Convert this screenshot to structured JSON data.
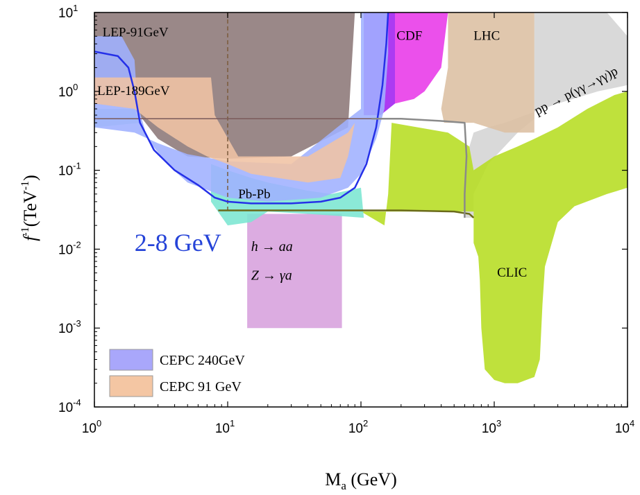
{
  "chart_data": {
    "type": "area",
    "xlabel": "M",
    "xlabel_sub": "a",
    "xlabel_unit": " (GeV)",
    "ylabel": "f",
    "ylabel_sup": "-1",
    "ylabel_unit": "(TeV",
    "ylabel_unit_sup": "-1",
    "ylabel_unit_close": ")",
    "x_scale": "log",
    "y_scale": "log",
    "xlim": [
      1,
      10000
    ],
    "ylim": [
      0.0001,
      10
    ],
    "x_ticks": [
      {
        "base": "10",
        "exp": "0",
        "value": 1
      },
      {
        "base": "10",
        "exp": "1",
        "value": 10
      },
      {
        "base": "10",
        "exp": "2",
        "value": 100
      },
      {
        "base": "10",
        "exp": "3",
        "value": 1000
      },
      {
        "base": "10",
        "exp": "4",
        "value": 10000
      }
    ],
    "y_ticks": [
      {
        "base": "10",
        "exp": "-4",
        "value": 0.0001
      },
      {
        "base": "10",
        "exp": "-3",
        "value": 0.001
      },
      {
        "base": "10",
        "exp": "-2",
        "value": 0.01
      },
      {
        "base": "10",
        "exp": "-1",
        "value": 0.1
      },
      {
        "base": "10",
        "exp": "0",
        "value": 1
      },
      {
        "base": "10",
        "exp": "1",
        "value": 10
      }
    ],
    "regions": [
      {
        "id": "lhc-pp",
        "color": "#d4d4d4",
        "points": [
          [
            2000,
            10
          ],
          [
            7000,
            10
          ],
          [
            10000,
            5
          ],
          [
            10000,
            1.2
          ],
          [
            6000,
            1.0
          ],
          [
            3000,
            0.7
          ],
          [
            2000,
            0.55
          ],
          [
            1200,
            0.4
          ],
          [
            900,
            0.35
          ],
          [
            700,
            0.3
          ],
          [
            620,
            0.15
          ],
          [
            590,
            0.05
          ],
          [
            590,
            0.025
          ],
          [
            700,
            0.025
          ],
          [
            700,
            0.05
          ],
          [
            900,
            0.12
          ],
          [
            1500,
            0.3
          ],
          [
            2000,
            0.45
          ]
        ]
      },
      {
        "id": "lhc",
        "color": "#dcbfa2",
        "points": [
          [
            450,
            10
          ],
          [
            2000,
            10
          ],
          [
            2000,
            0.3
          ],
          [
            1200,
            0.3
          ],
          [
            700,
            0.4
          ],
          [
            420,
            0.4
          ],
          [
            400,
            0.6
          ],
          [
            420,
            1.0
          ],
          [
            450,
            2.0
          ]
        ]
      },
      {
        "id": "clic",
        "color": "#b6dd21",
        "points": [
          [
            700,
            0.03
          ],
          [
            700,
            0.012
          ],
          [
            760,
            0.008
          ],
          [
            780,
            0.004
          ],
          [
            800,
            0.001
          ],
          [
            850,
            0.0003
          ],
          [
            1000,
            0.00022
          ],
          [
            1200,
            0.0002
          ],
          [
            1500,
            0.0002
          ],
          [
            2000,
            0.00024
          ],
          [
            2200,
            0.0004
          ],
          [
            2300,
            0.002
          ],
          [
            2400,
            0.006
          ],
          [
            3000,
            0.022
          ],
          [
            4000,
            0.035
          ],
          [
            7000,
            0.05
          ],
          [
            10000,
            0.06
          ],
          [
            10000,
            1.0
          ],
          [
            8000,
            0.9
          ],
          [
            5000,
            0.6
          ],
          [
            3000,
            0.35
          ],
          [
            2000,
            0.25
          ],
          [
            1500,
            0.2
          ],
          [
            1000,
            0.15
          ],
          [
            700,
            0.1
          ],
          [
            650,
            0.2
          ],
          [
            450,
            0.3
          ],
          [
            170,
            0.4
          ],
          [
            160,
            0.05
          ],
          [
            150,
            0.02
          ],
          [
            100,
            0.03
          ]
        ]
      },
      {
        "id": "cdf",
        "color": "#a020f0",
        "points": [
          [
            105,
            10
          ],
          [
            180,
            10
          ],
          [
            180,
            0.7
          ],
          [
            140,
            0.5
          ],
          [
            105,
            0.5
          ]
        ]
      },
      {
        "id": "cdf-magenta",
        "color": "#e838e8",
        "points": [
          [
            180,
            10
          ],
          [
            450,
            10
          ],
          [
            400,
            2.0
          ],
          [
            300,
            1.0
          ],
          [
            250,
            0.8
          ],
          [
            180,
            0.7
          ]
        ]
      },
      {
        "id": "lep-91",
        "color": "#8c7878",
        "points": [
          [
            1,
            10
          ],
          [
            90,
            10
          ],
          [
            80,
            0.35
          ],
          [
            30,
            0.15
          ],
          [
            10,
            0.14
          ],
          [
            5,
            0.15
          ],
          [
            3,
            0.25
          ],
          [
            2,
            0.6
          ],
          [
            1,
            0.7
          ]
        ]
      },
      {
        "id": "lep-189",
        "color": "#a5e3d3",
        "points": [
          [
            1,
            0.6
          ],
          [
            2,
            0.6
          ],
          [
            2.2,
            0.4
          ],
          [
            1,
            0.35
          ]
        ]
      },
      {
        "id": "hz",
        "color": "#d7a1dd",
        "points": [
          [
            14,
            0.028
          ],
          [
            72,
            0.028
          ],
          [
            72,
            0.001
          ],
          [
            14,
            0.001
          ]
        ]
      },
      {
        "id": "pbpb",
        "color": "#7be6d2",
        "points": [
          [
            7.5,
            0.12
          ],
          [
            10,
            0.1
          ],
          [
            15,
            0.08
          ],
          [
            20,
            0.07
          ],
          [
            40,
            0.055
          ],
          [
            60,
            0.05
          ],
          [
            100,
            0.06
          ],
          [
            105,
            0.025
          ],
          [
            40,
            0.028
          ],
          [
            20,
            0.03
          ],
          [
            15,
            0.022
          ],
          [
            10,
            0.02
          ],
          [
            7.5,
            0.04
          ]
        ]
      },
      {
        "id": "cepc-240",
        "color": "#9fb0ff",
        "points": [
          [
            1,
            5
          ],
          [
            1.6,
            5
          ],
          [
            2,
            2.5
          ],
          [
            2.1,
            0.7
          ],
          [
            2.5,
            0.25
          ],
          [
            3.5,
            0.12
          ],
          [
            5,
            0.07
          ],
          [
            10,
            0.045
          ],
          [
            20,
            0.04
          ],
          [
            50,
            0.045
          ],
          [
            80,
            0.06
          ],
          [
            100,
            0.09
          ],
          [
            130,
            0.25
          ],
          [
            150,
            0.6
          ],
          [
            160,
            3
          ],
          [
            160,
            10
          ],
          [
            100,
            10
          ],
          [
            100,
            0.6
          ],
          [
            80,
            0.45
          ],
          [
            30,
            0.12
          ],
          [
            10,
            0.13
          ],
          [
            5,
            0.16
          ],
          [
            3,
            0.22
          ],
          [
            2,
            0.3
          ],
          [
            1,
            0.35
          ]
        ]
      },
      {
        "id": "cepc-91",
        "color": "#f0c3a4",
        "points": [
          [
            1,
            1.5
          ],
          [
            7.5,
            1.5
          ],
          [
            8,
            0.5
          ],
          [
            12,
            0.15
          ],
          [
            40,
            0.15
          ],
          [
            80,
            0.3
          ],
          [
            90,
            0.4
          ],
          [
            80,
            0.15
          ],
          [
            70,
            0.08
          ],
          [
            40,
            0.07
          ],
          [
            15,
            0.09
          ],
          [
            10,
            0.12
          ],
          [
            7,
            0.15
          ],
          [
            5,
            0.2
          ],
          [
            3,
            0.35
          ],
          [
            2,
            0.6
          ],
          [
            1,
            0.7
          ]
        ]
      }
    ],
    "outlines": [
      {
        "id": "cepc-240-boundary",
        "color": "#2530e8",
        "points": [
          [
            1,
            3.2
          ],
          [
            1.5,
            2.8
          ],
          [
            1.8,
            2.0
          ],
          [
            2.0,
            1.0
          ],
          [
            2.2,
            0.4
          ],
          [
            2.8,
            0.18
          ],
          [
            4,
            0.1
          ],
          [
            6,
            0.065
          ],
          [
            8,
            0.045
          ],
          [
            10,
            0.04
          ],
          [
            15,
            0.038
          ],
          [
            30,
            0.038
          ],
          [
            50,
            0.04
          ],
          [
            70,
            0.045
          ],
          [
            90,
            0.06
          ],
          [
            110,
            0.12
          ],
          [
            130,
            0.35
          ],
          [
            145,
            1.2
          ],
          [
            155,
            4
          ],
          [
            160,
            10
          ]
        ]
      },
      {
        "id": "clic-boundary",
        "color": "#6a6a1a",
        "points": [
          [
            8.5,
            0.031
          ],
          [
            200,
            0.031
          ],
          [
            500,
            0.03
          ],
          [
            650,
            0.028
          ],
          [
            700,
            0.025
          ]
        ]
      },
      {
        "id": "lhc-pp-boundary",
        "color": "#8a8a8a",
        "points": [
          [
            120,
            0.45
          ],
          [
            200,
            0.45
          ],
          [
            420,
            0.42
          ],
          [
            600,
            0.4
          ],
          [
            620,
            0.15
          ],
          [
            600,
            0.05
          ],
          [
            600,
            0.025
          ]
        ]
      }
    ],
    "region_labels": [
      {
        "text": "LEP-91GeV",
        "x": 1.15,
        "y": 5.0
      },
      {
        "text": "LEP-189GeV",
        "x": 1.05,
        "y": 0.9
      },
      {
        "text": "CDF",
        "x": 185,
        "y": 4.5
      },
      {
        "text": "LHC",
        "x": 700,
        "y": 4.5
      },
      {
        "text": "Pb-Pb",
        "x": 12,
        "y": 0.044
      },
      {
        "text": "CLIC",
        "x": 1050,
        "y": 0.0045
      }
    ],
    "rotated_label": {
      "text": "pp → p(γγ→γγ)p",
      "x": 2100,
      "y": 0.5
    },
    "process_labels": [
      {
        "text": "h → aa",
        "x": 15,
        "y": 0.0095
      },
      {
        "text": "Z → γa",
        "x": 15,
        "y": 0.0041
      }
    ],
    "callout": {
      "text": "2-8 GeV",
      "color": "#2543d8",
      "x": 2.0,
      "y": 0.0095
    },
    "legend": [
      {
        "label": "CEPC 240GeV",
        "color": "#a9a7fb"
      },
      {
        "label": "CEPC  91 GeV",
        "color": "#f4c6a3"
      }
    ],
    "legend_position": "bottom-left",
    "grid": false
  }
}
